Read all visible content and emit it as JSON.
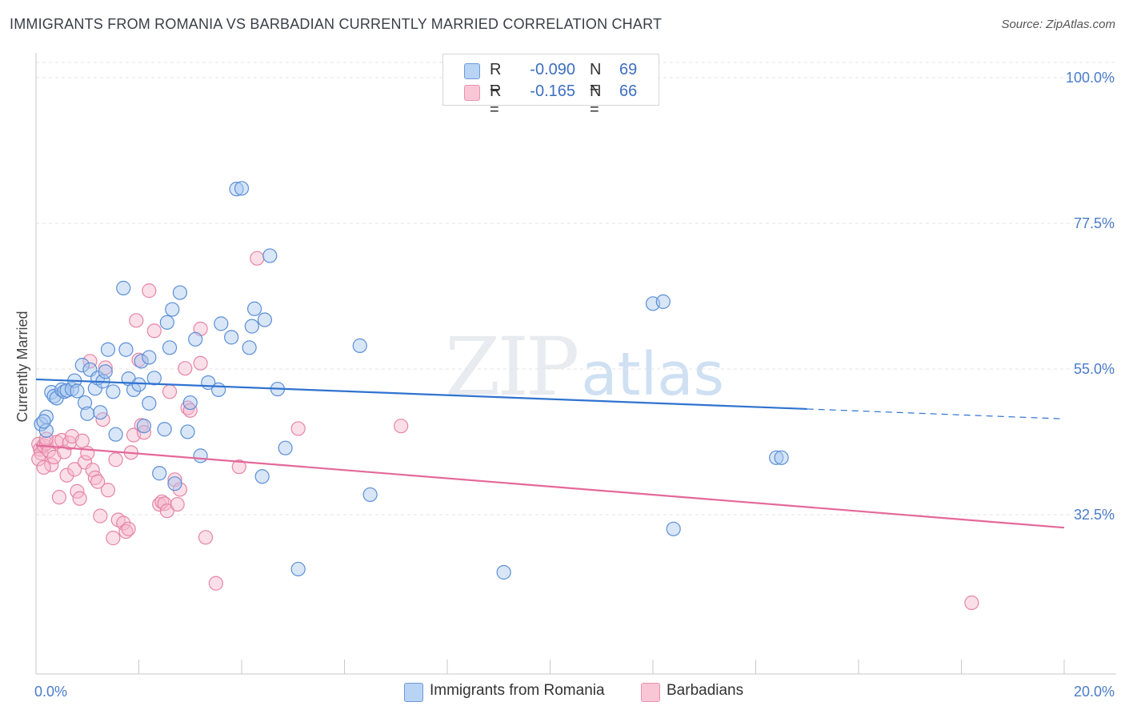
{
  "title": "IMMIGRANTS FROM ROMANIA VS BARBADIAN CURRENTLY MARRIED CORRELATION CHART",
  "source": "Source: ZipAtlas.com",
  "watermark": {
    "zip": "ZIP",
    "atlas": "atlas"
  },
  "legend": {
    "rows": [
      {
        "r_label": "R =",
        "r_value": "-0.090",
        "n_label": "N =",
        "n_value": "69"
      },
      {
        "r_label": "R =",
        "r_value": "-0.165",
        "n_label": "N =",
        "n_value": "66"
      }
    ]
  },
  "bottom_legend": {
    "series1": "Immigrants from Romania",
    "series2": "Barbadians"
  },
  "colors": {
    "blue_fill": "#a8c8f0",
    "blue_stroke": "#5b8fd6",
    "blue_line": "#2f73d0",
    "pink_fill": "#f6b8cb",
    "pink_stroke": "#e585a6",
    "pink_line": "#e4689a",
    "grid": "#e3e3e3",
    "tick_label": "#4a7cc9"
  },
  "chart_data": {
    "type": "scatter",
    "title": "IMMIGRANTS FROM ROMANIA VS BARBADIAN CURRENTLY MARRIED CORRELATION CHART",
    "xlabel": "",
    "ylabel": "Currently Married",
    "xlim": [
      0,
      20
    ],
    "ylim": [
      10,
      105
    ],
    "x_tick_labels": [
      "0.0%",
      "20.0%"
    ],
    "y_ticks": [
      32.5,
      55.0,
      77.5,
      100.0
    ],
    "y_tick_labels": [
      "32.5%",
      "55.0%",
      "77.5%",
      "100.0%"
    ],
    "grid": true,
    "legend_position": "top-center",
    "series": [
      {
        "name": "Immigrants from Romania",
        "r": -0.09,
        "n": 69,
        "trend": {
          "x0": 0.0,
          "y0": 53.4,
          "x_solid_end": 15.0,
          "x1": 20.0,
          "y1": 47.3
        },
        "points": [
          [
            0.1,
            46.5
          ],
          [
            0.2,
            47.6
          ],
          [
            0.2,
            45.5
          ],
          [
            0.15,
            46.9
          ],
          [
            0.3,
            51.4
          ],
          [
            0.35,
            50.8
          ],
          [
            0.4,
            50.5
          ],
          [
            0.5,
            51.8
          ],
          [
            0.55,
            51.5
          ],
          [
            0.6,
            51.7
          ],
          [
            0.7,
            51.9
          ],
          [
            0.75,
            53.2
          ],
          [
            0.8,
            51.6
          ],
          [
            0.9,
            55.6
          ],
          [
            0.95,
            49.8
          ],
          [
            1.0,
            48.1
          ],
          [
            1.05,
            54.9
          ],
          [
            1.15,
            52.0
          ],
          [
            1.2,
            53.6
          ],
          [
            1.25,
            48.3
          ],
          [
            1.3,
            53.1
          ],
          [
            1.35,
            54.6
          ],
          [
            1.4,
            58.0
          ],
          [
            1.5,
            51.5
          ],
          [
            1.55,
            44.9
          ],
          [
            1.7,
            67.5
          ],
          [
            1.75,
            58.0
          ],
          [
            1.8,
            53.5
          ],
          [
            1.9,
            51.8
          ],
          [
            2.0,
            52.6
          ],
          [
            2.05,
            56.2
          ],
          [
            2.1,
            46.2
          ],
          [
            2.2,
            56.8
          ],
          [
            2.2,
            49.7
          ],
          [
            2.3,
            53.6
          ],
          [
            2.4,
            38.9
          ],
          [
            2.5,
            45.7
          ],
          [
            2.55,
            62.2
          ],
          [
            2.6,
            58.3
          ],
          [
            2.65,
            64.2
          ],
          [
            2.7,
            37.3
          ],
          [
            2.8,
            66.8
          ],
          [
            2.95,
            45.3
          ],
          [
            3.0,
            49.8
          ],
          [
            3.1,
            59.6
          ],
          [
            3.2,
            41.6
          ],
          [
            3.35,
            52.9
          ],
          [
            3.55,
            51.8
          ],
          [
            3.6,
            62.0
          ],
          [
            3.8,
            59.9
          ],
          [
            3.9,
            82.8
          ],
          [
            4.0,
            82.9
          ],
          [
            4.15,
            58.3
          ],
          [
            4.2,
            61.6
          ],
          [
            4.25,
            64.3
          ],
          [
            4.45,
            62.6
          ],
          [
            4.4,
            38.4
          ],
          [
            4.55,
            72.5
          ],
          [
            4.7,
            51.9
          ],
          [
            4.85,
            42.8
          ],
          [
            5.1,
            24.1
          ],
          [
            6.3,
            58.6
          ],
          [
            6.5,
            35.6
          ],
          [
            9.1,
            23.6
          ],
          [
            12.0,
            65.1
          ],
          [
            12.2,
            65.4
          ],
          [
            12.4,
            30.3
          ],
          [
            14.4,
            41.3
          ],
          [
            14.5,
            41.3
          ]
        ]
      },
      {
        "name": "Barbadians",
        "r": -0.165,
        "n": 66,
        "trend": {
          "x0": 0.0,
          "y0": 43.2,
          "x1": 20.0,
          "y1": 30.5
        },
        "points": [
          [
            0.05,
            43.4
          ],
          [
            0.08,
            42.6
          ],
          [
            0.1,
            42.0
          ],
          [
            0.15,
            43.2
          ],
          [
            0.2,
            43.5
          ],
          [
            0.25,
            42.4
          ],
          [
            0.3,
            40.2
          ],
          [
            0.35,
            41.4
          ],
          [
            0.4,
            43.7
          ],
          [
            0.45,
            35.2
          ],
          [
            0.5,
            44.0
          ],
          [
            0.55,
            42.2
          ],
          [
            0.6,
            38.6
          ],
          [
            0.65,
            43.6
          ],
          [
            0.7,
            44.6
          ],
          [
            0.75,
            39.5
          ],
          [
            0.8,
            36.1
          ],
          [
            0.85,
            35.0
          ],
          [
            0.9,
            43.9
          ],
          [
            0.95,
            40.6
          ],
          [
            1.0,
            42.0
          ],
          [
            1.05,
            56.2
          ],
          [
            1.1,
            39.4
          ],
          [
            1.15,
            38.2
          ],
          [
            1.2,
            37.6
          ],
          [
            1.25,
            32.3
          ],
          [
            1.3,
            47.2
          ],
          [
            1.35,
            55.2
          ],
          [
            1.4,
            36.3
          ],
          [
            1.5,
            28.9
          ],
          [
            1.55,
            41.0
          ],
          [
            1.6,
            31.7
          ],
          [
            1.7,
            31.2
          ],
          [
            1.75,
            29.9
          ],
          [
            1.8,
            30.3
          ],
          [
            1.85,
            42.1
          ],
          [
            1.9,
            44.8
          ],
          [
            1.95,
            62.5
          ],
          [
            2.0,
            56.4
          ],
          [
            2.05,
            46.3
          ],
          [
            2.1,
            45.2
          ],
          [
            2.2,
            67.1
          ],
          [
            2.3,
            60.9
          ],
          [
            2.4,
            34.1
          ],
          [
            2.45,
            34.5
          ],
          [
            2.5,
            34.2
          ],
          [
            2.55,
            33.1
          ],
          [
            2.6,
            51.5
          ],
          [
            2.7,
            37.9
          ],
          [
            2.75,
            34.1
          ],
          [
            2.8,
            36.4
          ],
          [
            2.9,
            55.1
          ],
          [
            2.95,
            49.0
          ],
          [
            3.0,
            48.6
          ],
          [
            3.2,
            61.2
          ],
          [
            3.2,
            55.9
          ],
          [
            3.3,
            29.0
          ],
          [
            3.5,
            21.9
          ],
          [
            3.95,
            39.9
          ],
          [
            4.3,
            72.1
          ],
          [
            5.1,
            45.8
          ],
          [
            7.1,
            46.2
          ],
          [
            18.2,
            18.9
          ],
          [
            0.05,
            41.1
          ],
          [
            0.15,
            39.8
          ],
          [
            0.2,
            44.2
          ]
        ]
      }
    ]
  }
}
